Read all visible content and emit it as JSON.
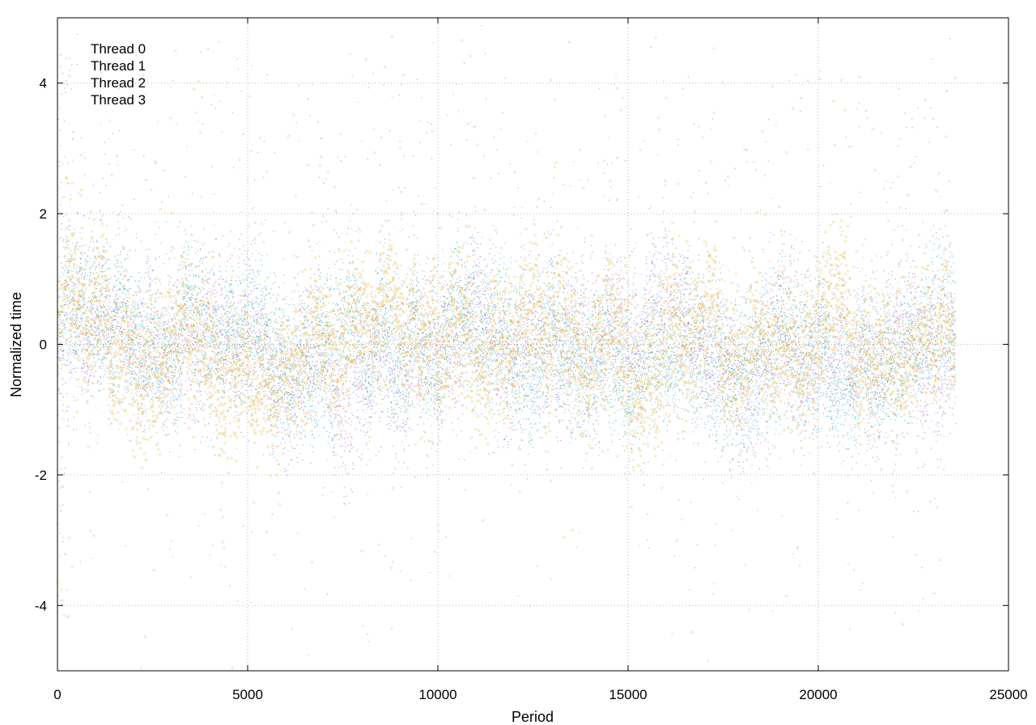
{
  "chart_data": {
    "type": "scatter",
    "title": "",
    "xlabel": "Period",
    "ylabel": "Normalized time",
    "xlim": [
      0,
      25000
    ],
    "ylim": [
      -5,
      5
    ],
    "x_ticks": [
      0,
      5000,
      10000,
      15000,
      20000,
      25000
    ],
    "y_ticks": [
      -4,
      -2,
      0,
      2,
      4
    ],
    "grid": true,
    "legend_position": "top-left",
    "points_per_series": 23600,
    "series": [
      {
        "name": "Thread 0",
        "color": "#9b59d0",
        "marker": "dot"
      },
      {
        "name": "Thread 1",
        "color": "#2aa198",
        "marker": "dot"
      },
      {
        "name": "Thread 2",
        "color": "#56b4e9",
        "marker": "dot"
      },
      {
        "name": "Thread 3",
        "color": "#e6b84a",
        "marker": "square"
      }
    ]
  }
}
